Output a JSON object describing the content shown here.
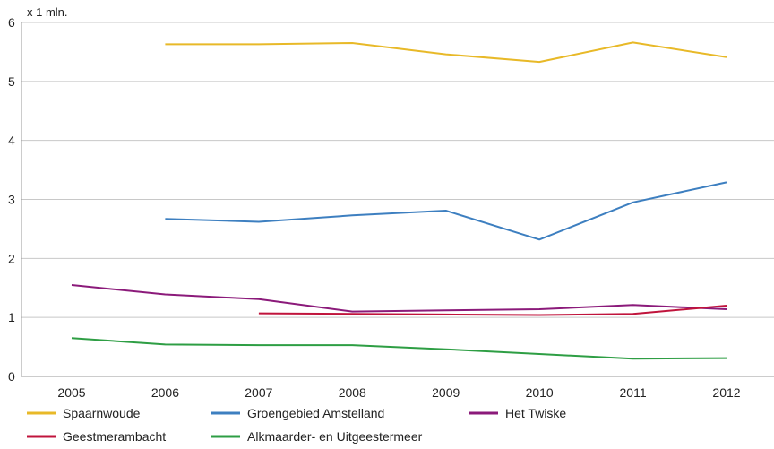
{
  "chart_data": {
    "type": "line",
    "unit_label": "x 1 mln.",
    "x": [
      "2005",
      "2006",
      "2007",
      "2008",
      "2009",
      "2010",
      "2011",
      "2012"
    ],
    "ylim": [
      0,
      6
    ],
    "yticks": [
      "0",
      "1",
      "2",
      "3",
      "4",
      "5",
      "6"
    ],
    "grid": "horizontal",
    "legend_position": "bottom",
    "series": [
      {
        "name": "Spaarnwoude",
        "color": "#E8B928",
        "values": [
          null,
          5.63,
          5.63,
          5.65,
          5.46,
          5.33,
          5.66,
          5.41
        ]
      },
      {
        "name": "Groengebied Amstelland",
        "color": "#3D7FC0",
        "values": [
          null,
          2.67,
          2.62,
          2.73,
          2.81,
          2.32,
          2.95,
          3.29
        ]
      },
      {
        "name": "Het Twiske",
        "color": "#8B1A7A",
        "values": [
          1.55,
          1.39,
          1.31,
          1.1,
          1.12,
          1.14,
          1.21,
          1.14
        ]
      },
      {
        "name": "Geestmerambacht",
        "color": "#C0143C",
        "values": [
          null,
          null,
          1.07,
          1.06,
          1.05,
          1.04,
          1.06,
          1.2
        ]
      },
      {
        "name": "Alkmaarder- en Uitgeestermeer",
        "color": "#2E9E44",
        "values": [
          0.65,
          0.54,
          0.53,
          0.53,
          0.46,
          0.38,
          0.3,
          0.31
        ]
      }
    ]
  }
}
